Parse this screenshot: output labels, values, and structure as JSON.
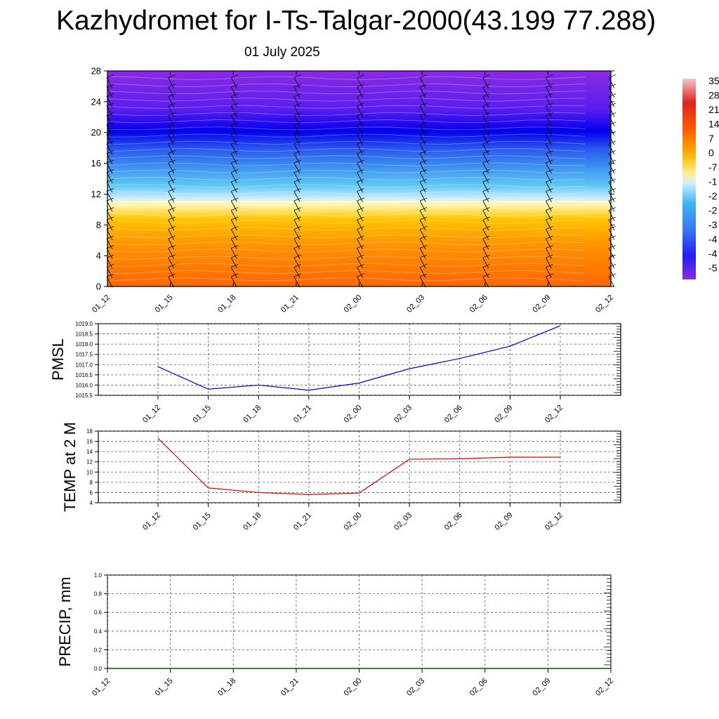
{
  "title": "Kazhydromet for I-Ts-Talgar-2000(43.199 77.288)",
  "subtitle": "01 July 2025",
  "chart_data": [
    {
      "type": "heatmap",
      "name": "temperature-height-section",
      "x_ticks": [
        "01_12",
        "01_15",
        "01_18",
        "01_21",
        "02_00",
        "02_03",
        "02_06",
        "02_09",
        "02_12"
      ],
      "y_ticks": [
        "0",
        "4",
        "8",
        "12",
        "16",
        "20",
        "24",
        "28"
      ],
      "ylim": [
        0,
        28
      ],
      "colorbar_labels": [
        "35",
        "28",
        "21",
        "14",
        "7",
        "0",
        "-7",
        "-1",
        "-2",
        "-2",
        "-3",
        "-4",
        "-4",
        "-5"
      ],
      "colors": {
        "warm": "#ff6a00",
        "mid": "#ffd100",
        "zero": "#fffbd0",
        "cool": "#3aa0f0",
        "cold": "#0000ff",
        "top": "#8a2be2"
      },
      "freezing_level": 11,
      "overlay": "wind barbs"
    },
    {
      "type": "line",
      "name": "pmsl",
      "ylabel": "PMSL",
      "x_ticks": [
        "01_12",
        "01_15",
        "01_18",
        "01_21",
        "02_00",
        "02_03",
        "02_06",
        "02_09",
        "02_12"
      ],
      "y_ticks": [
        "1015.5",
        "1016.0",
        "1016.5",
        "1017.0",
        "1017.5",
        "1018.0",
        "1018.5",
        "1019.0"
      ],
      "ylim": [
        1015.5,
        1019.0
      ],
      "grid": true,
      "series": [
        {
          "color": "#0000cc",
          "values": [
            1016.9,
            1015.8,
            1016.0,
            1015.75,
            1016.1,
            1016.8,
            1017.3,
            1017.9,
            1018.9
          ]
        }
      ]
    },
    {
      "type": "line",
      "name": "temp-2m",
      "ylabel": "TEMP at 2 M",
      "x_ticks": [
        "01_12",
        "01_15",
        "01_18",
        "01_21",
        "02_00",
        "02_03",
        "02_06",
        "02_09",
        "02_12"
      ],
      "y_ticks": [
        "4",
        "6",
        "8",
        "10",
        "12",
        "14",
        "16",
        "18"
      ],
      "ylim": [
        4,
        18
      ],
      "grid": true,
      "series": [
        {
          "color": "#dd0000",
          "values": [
            16.6,
            6.9,
            6.0,
            5.6,
            5.9,
            12.5,
            12.6,
            12.9,
            12.9
          ]
        }
      ]
    },
    {
      "type": "line",
      "name": "precip",
      "ylabel": "PRECIP, mm",
      "x_ticks": [
        "01_12",
        "01_15",
        "01_18",
        "01_21",
        "02_00",
        "02_03",
        "02_06",
        "02_09",
        "02_12"
      ],
      "y_ticks": [
        "0.0",
        "0.2",
        "0.4",
        "0.6",
        "0.8",
        "1.0"
      ],
      "ylim": [
        0,
        1.0
      ],
      "grid": true,
      "series": [
        {
          "color": "#007a00",
          "values": [
            0,
            0,
            0,
            0,
            0,
            0,
            0,
            0,
            0
          ]
        }
      ]
    }
  ]
}
